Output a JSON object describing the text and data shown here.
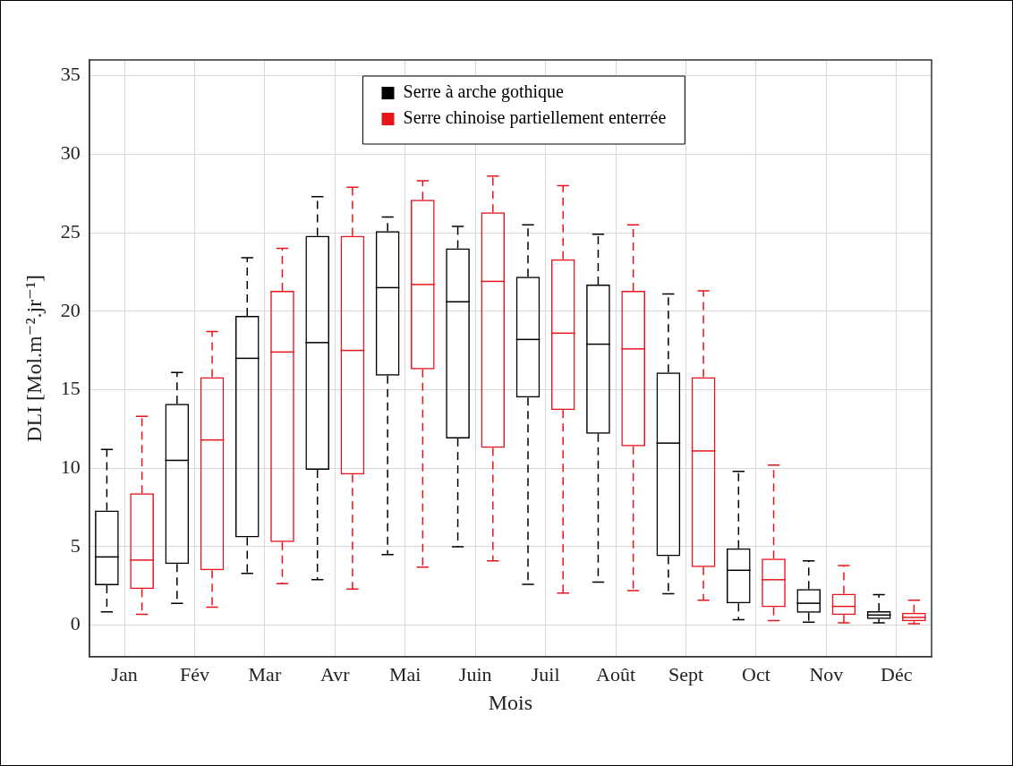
{
  "chart_data": {
    "type": "box",
    "xlabel": "Mois",
    "ylabel": "DLI [Mol.m⁻².jr⁻¹]",
    "categories": [
      "Jan",
      "Fév",
      "Mar",
      "Avr",
      "Mai",
      "Juin",
      "Juil",
      "Août",
      "Sept",
      "Oct",
      "Nov",
      "Déc"
    ],
    "ylim": [
      -2,
      36
    ],
    "yticks": [
      0,
      5,
      10,
      15,
      20,
      25,
      30,
      35
    ],
    "grid": true,
    "legend": "top",
    "series": [
      {
        "name": "Serre à arche gothique",
        "color": "#000000",
        "boxes": [
          {
            "low": 0.85,
            "q1": 2.55,
            "median": 4.35,
            "q3": 7.3,
            "high": 11.2
          },
          {
            "low": 1.4,
            "q1": 3.9,
            "median": 10.5,
            "q3": 14.1,
            "high": 16.1
          },
          {
            "low": 3.3,
            "q1": 5.6,
            "median": 17.0,
            "q3": 19.7,
            "high": 23.4
          },
          {
            "low": 2.9,
            "q1": 9.9,
            "median": 18.0,
            "q3": 24.8,
            "high": 27.3
          },
          {
            "low": 4.5,
            "q1": 15.9,
            "median": 21.5,
            "q3": 25.1,
            "high": 26.0
          },
          {
            "low": 5.0,
            "q1": 11.9,
            "median": 20.6,
            "q3": 24.0,
            "high": 25.4
          },
          {
            "low": 2.6,
            "q1": 14.5,
            "median": 18.2,
            "q3": 22.2,
            "high": 25.5
          },
          {
            "low": 2.75,
            "q1": 12.2,
            "median": 17.9,
            "q3": 21.7,
            "high": 24.9
          },
          {
            "low": 2.0,
            "q1": 4.4,
            "median": 11.6,
            "q3": 16.1,
            "high": 21.1
          },
          {
            "low": 0.35,
            "q1": 1.4,
            "median": 3.5,
            "q3": 4.9,
            "high": 9.8
          },
          {
            "low": 0.2,
            "q1": 0.8,
            "median": 1.4,
            "q3": 2.3,
            "high": 4.1
          },
          {
            "low": 0.15,
            "q1": 0.4,
            "median": 0.65,
            "q3": 0.9,
            "high": 1.95
          }
        ]
      },
      {
        "name": "Serre chinoise partiellement enterrée",
        "color": "#e8141b",
        "boxes": [
          {
            "low": 0.7,
            "q1": 2.3,
            "median": 4.15,
            "q3": 8.4,
            "high": 13.3
          },
          {
            "low": 1.15,
            "q1": 3.5,
            "median": 11.8,
            "q3": 15.8,
            "high": 18.7
          },
          {
            "low": 2.65,
            "q1": 5.3,
            "median": 17.4,
            "q3": 21.3,
            "high": 24.0
          },
          {
            "low": 2.3,
            "q1": 9.6,
            "median": 17.5,
            "q3": 24.8,
            "high": 27.9
          },
          {
            "low": 3.7,
            "q1": 16.3,
            "median": 21.7,
            "q3": 27.1,
            "high": 28.3
          },
          {
            "low": 4.1,
            "q1": 11.3,
            "median": 21.9,
            "q3": 26.3,
            "high": 28.6
          },
          {
            "low": 2.05,
            "q1": 13.7,
            "median": 18.6,
            "q3": 23.3,
            "high": 28.0
          },
          {
            "low": 2.2,
            "q1": 11.4,
            "median": 17.6,
            "q3": 21.3,
            "high": 25.5
          },
          {
            "low": 1.6,
            "q1": 3.7,
            "median": 11.1,
            "q3": 15.8,
            "high": 21.3
          },
          {
            "low": 0.3,
            "q1": 1.15,
            "median": 2.9,
            "q3": 4.25,
            "high": 10.2
          },
          {
            "low": 0.15,
            "q1": 0.65,
            "median": 1.2,
            "q3": 2.0,
            "high": 3.8
          },
          {
            "low": 0.1,
            "q1": 0.25,
            "median": 0.5,
            "q3": 0.8,
            "high": 1.6
          }
        ]
      }
    ]
  }
}
